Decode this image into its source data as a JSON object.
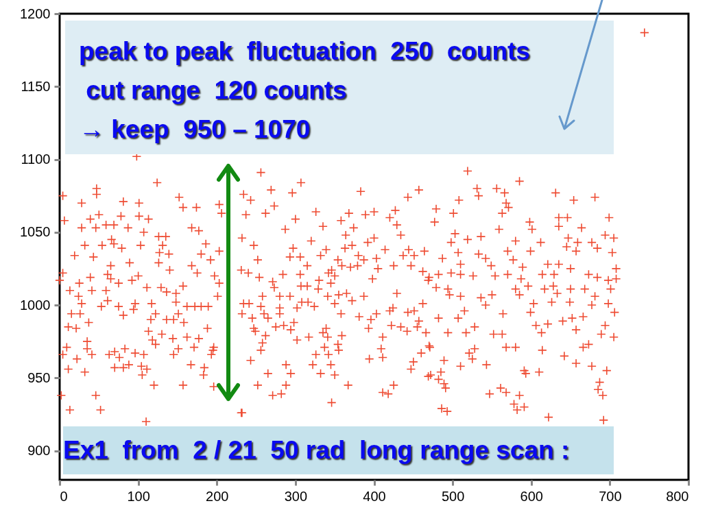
{
  "chart_data": {
    "type": "scatter",
    "marker": "cross",
    "grid": false,
    "xlim": [
      0,
      800
    ],
    "xticks": [
      0,
      100,
      200,
      300,
      400,
      500,
      600,
      700,
      800
    ],
    "ylim": [
      880,
      1200
    ],
    "yticks": [
      900,
      950,
      1000,
      1050,
      1100,
      1150,
      1200
    ],
    "annotations": [
      "peak to peak  fluctuation  250  counts",
      " cut range  120 counts",
      "→ keep  950 – 1070",
      "Ex1  from  2 / 21  50 rad  long range scan :"
    ],
    "series": [
      {
        "color": "#ee4b32",
        "x": [
          4,
          28,
          47,
          47,
          6,
          39,
          50,
          28,
          46,
          59,
          69,
          78,
          81,
          101,
          113,
          101,
          124,
          98,
          152,
          157,
          174,
          203,
          206,
          66,
          87,
          107,
          126,
          135,
          32,
          54,
          79,
          103,
          168,
          177,
          186,
          19,
          43,
          69,
          131,
          127,
          139,
          180,
          192,
          203,
          89,
          126,
          140,
          168,
          175,
          65,
          61,
          65,
          4,
          0,
          39,
          25,
          13,
          41,
          59,
          75,
          92,
          100,
          111,
          129,
          136,
          148,
          157,
          197,
          203,
          201,
          24,
          28,
          61,
          53,
          75,
          96,
          94,
          117,
          148,
          162,
          172,
          180,
          189,
          15,
          26,
          11,
          21,
          37,
          81,
          116,
          122,
          136,
          145,
          151,
          158,
          113,
          130,
          118,
          122,
          144,
          162,
          177,
          188,
          171,
          196,
          35,
          35,
          9,
          4,
          22,
          41,
          63,
          70,
          76,
          83,
          88,
          96,
          107,
          104,
          111,
          105,
          70,
          81,
          145,
          151,
          167,
          184,
          183,
          193,
          195,
          11,
          32,
          120,
          157,
          196,
          2,
          46,
          13,
          52,
          110,
          231,
          744,
          256,
          307,
          269,
          296,
          383,
          234,
          243,
          273,
          262,
          237,
          326,
          300,
          335,
          358,
          368,
          389,
          400,
          427,
          420,
          429,
          434,
          443,
          457,
          287,
          374,
          364,
          320,
          297,
          247,
          232,
          339,
          363,
          372,
          392,
          400,
          414,
          444,
          464,
          252,
          293,
          306,
          332,
          354,
          380,
          387,
          403,
          437,
          451,
          315,
          359,
          370,
          379,
          405,
          425,
          447,
          231,
          240,
          284,
          306,
          346,
          342,
          462,
          254,
          271,
          330,
          350,
          345,
          398,
          469,
          273,
          307,
          315,
          329,
          355,
          365,
          387,
          429,
          258,
          280,
          293,
          234,
          241,
          256,
          308,
          316,
          341,
          350,
          372,
          420,
          424,
          462,
          232,
          260,
          280,
          280,
          302,
          324,
          358,
          381,
          403,
          396,
          443,
          451,
          245,
          265,
          298,
          285,
          275,
          247,
          422,
          434,
          457,
          442,
          393,
          455,
          249,
          262,
          294,
          335,
          339,
          317,
          341,
          359,
          466,
          302,
          411,
          258,
          256,
          354,
          337,
          409,
          355,
          326,
          342,
          460,
          471,
          243,
          394,
          411,
          322,
          345,
          450,
          447,
          288,
          265,
          294,
          332,
          350,
          469,
          252,
          288,
          367,
          425,
          271,
          282,
          411,
          418,
          346,
          232,
          519,
          585,
          531,
          533,
          556,
          566,
          568,
          571,
          563,
          508,
          479,
          501,
          477,
          631,
          654,
          681,
          635,
          646,
          699,
          598,
          601,
          635,
          664,
          559,
          503,
          519,
          536,
          580,
          647,
          694,
          705,
          498,
          612,
          659,
          677,
          684,
          645,
          507,
          533,
          570,
          599,
          657,
          703,
          487,
          542,
          577,
          510,
          549,
          589,
          621,
          635,
          650,
          708,
          470,
          482,
          498,
          510,
          526,
          554,
          570,
          587,
          614,
          629,
          673,
          684,
          698,
          708,
          479,
          494,
          580,
          596,
          617,
          628,
          650,
          668,
          701,
          496,
          510,
          536,
          550,
          585,
          633,
          681,
          515,
          542,
          564,
          603,
          626,
          649,
          677,
          698,
          482,
          507,
          599,
          606,
          621,
          640,
          652,
          666,
          706,
          528,
          494,
          517,
          552,
          563,
          613,
          657,
          689,
          694,
          705,
          470,
          528,
          568,
          580,
          614,
          666,
          673,
          521,
          525,
          642,
          489,
          510,
          543,
          657,
          677,
          591,
          593,
          610,
          696,
          472,
          485,
          482,
          489,
          491,
          687,
          685,
          691,
          547,
          561,
          568,
          585,
          578,
          591,
          582,
          486,
          622,
          692,
          493
        ],
        "values": [
          1075,
          1070,
          1080,
          1076,
          1058,
          1059,
          1062,
          1053,
          1053,
          1055,
          1055,
          1061,
          1071,
          1070,
          1059,
          1061,
          1084,
          1102,
          1074,
          1067,
          1067,
          1069,
          1063,
          1045,
          1053,
          1050,
          1047,
          1047,
          1041,
          1041,
          1039,
          1041,
          1053,
          1051,
          1042,
          1034,
          1033,
          1042,
          1041,
          1036,
          1035,
          1035,
          1031,
          1037,
          1029,
          1029,
          1024,
          1027,
          1022,
          1027,
          1021,
          1018,
          1022,
          1017,
          1019,
          1015,
          1010,
          1010,
          1010,
          1015,
          1017,
          1020,
          1012,
          1012,
          1009,
          1008,
          1013,
          1020,
          1015,
          1006,
          1006,
          1001,
          1003,
          999,
          999,
          1001,
          997,
          1001,
          1002,
          999,
          999,
          999,
          999,
          994,
          994,
          985,
          984,
          988,
          993,
          990,
          994,
          990,
          990,
          994,
          988,
          982,
          980,
          976,
          973,
          977,
          978,
          977,
          984,
          971,
          971,
          975,
          970,
          971,
          966,
          963,
          966,
          966,
          968,
          964,
          970,
          959,
          967,
          966,
          958,
          956,
          952,
          957,
          957,
          966,
          970,
          959,
          957,
          952,
          966,
          969,
          956,
          954,
          945,
          945,
          944,
          938,
          938,
          928,
          928,
          920,
          926,
          1187,
          1091,
          1084,
          1079,
          1077,
          1078,
          1076,
          1072,
          1068,
          1063,
          1062,
          1064,
          1059,
          1054,
          1058,
          1063,
          1062,
          1064,
          1065,
          1060,
          1055,
          1048,
          1074,
          1079,
          1052,
          1053,
          1048,
          1044,
          1039,
          1041,
          1046,
          1038,
          1039,
          1041,
          1043,
          1046,
          1038,
          1038,
          1037,
          1031,
          1033,
          1033,
          1034,
          1031,
          1034,
          1031,
          1032,
          1034,
          1034,
          1027,
          1027,
          1026,
          1027,
          1025,
          1027,
          1027,
          1024,
          1022,
          1021,
          1021,
          1024,
          1022,
          1023,
          1019,
          1016,
          1017,
          1020,
          1015,
          1018,
          1017,
          1012,
          1013,
          1013,
          1011,
          1007,
          1008,
          1006,
          1008,
          1006,
          1006,
          1006,
          1001,
          1001,
          999,
          1002,
          1002,
          1006,
          1001,
          1003,
          996,
          998,
          1001,
          994,
          994,
          998,
          994,
          998,
          999,
          994,
          992,
          994,
          990,
          995,
          996,
          991,
          991,
          988,
          986,
          985,
          984,
          986,
          985,
          989,
          982,
          984,
          985,
          982,
          979,
          983,
          981,
          984,
          978,
          978,
          979,
          981,
          976,
          978,
          974,
          969,
          973,
          971,
          970,
          969,
          966,
          966,
          967,
          971,
          962,
          963,
          964,
          959,
          959,
          961,
          956,
          959,
          953,
          953,
          953,
          952,
          951,
          945,
          945,
          945,
          945,
          938,
          939,
          940,
          939,
          933,
          926,
          1092,
          1085,
          1080,
          1075,
          1080,
          1077,
          1070,
          1067,
          1063,
          1072,
          1066,
          1063,
          1057,
          1077,
          1072,
          1074,
          1060,
          1060,
          1060,
          1057,
          1052,
          1054,
          1053,
          1052,
          1049,
          1045,
          1047,
          1044,
          1046,
          1048,
          1046,
          1043,
          1043,
          1043,
          1043,
          1039,
          1040,
          1036,
          1035,
          1037,
          1037,
          1037,
          1036,
          1032,
          1032,
          1031,
          1028,
          1027,
          1026,
          1028,
          1028,
          1025,
          1025,
          1019,
          1021,
          1022,
          1021,
          1020,
          1020,
          1021,
          1018,
          1021,
          1021,
          1021,
          1019,
          1017,
          1018,
          1012,
          1011,
          1011,
          1013,
          1011,
          1013,
          1011,
          1011,
          1011,
          1007,
          1006,
          1005,
          1007,
          1007,
          1008,
          1006,
          996,
          1000,
          994,
          1001,
          1002,
          1002,
          1000,
          1001,
          991,
          991,
          995,
          986,
          987,
          989,
          991,
          992,
          995,
          985,
          981,
          981,
          980,
          980,
          981,
          983,
          980,
          986,
          978,
          972,
          970,
          971,
          971,
          969,
          971,
          973,
          967,
          963,
          965,
          962,
          958,
          959,
          960,
          958,
          955,
          953,
          954,
          955,
          952,
          954,
          949,
          946,
          943,
          947,
          942,
          938,
          939,
          943,
          940,
          938,
          932,
          930,
          928,
          929,
          923,
          921,
          927
        ]
      }
    ]
  }
}
